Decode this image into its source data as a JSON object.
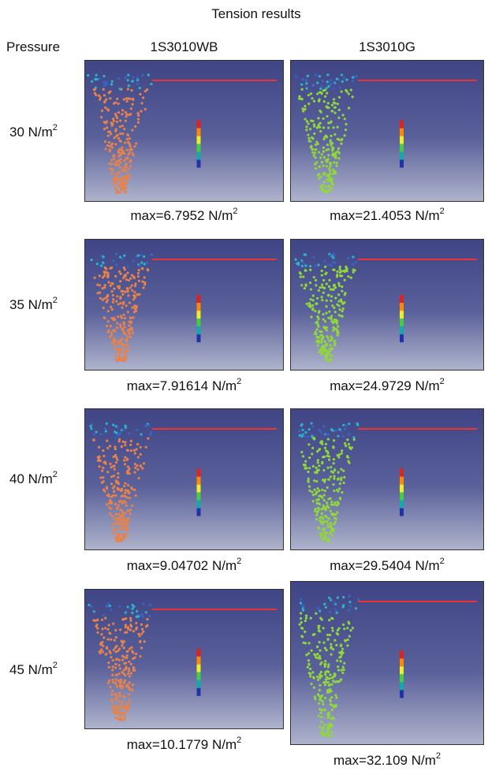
{
  "title": "Tension results",
  "header": {
    "row_label": "Pressure",
    "columns": [
      "1S3010WB",
      "1S3010G"
    ]
  },
  "rows": [
    {
      "pressure": "30 N/m",
      "pressure_sup": "2",
      "cells": [
        {
          "caption": "max=6.7952 N/m",
          "caption_sup": "2"
        },
        {
          "caption": "max=21.4053 N/m",
          "caption_sup": "2"
        }
      ]
    },
    {
      "pressure": "35 N/m",
      "pressure_sup": "2",
      "cells": [
        {
          "caption": "max=7.91614 N/m",
          "caption_sup": "2"
        },
        {
          "caption": "max=24.9729 N/m",
          "caption_sup": "2"
        }
      ]
    },
    {
      "pressure": "40 N/m",
      "pressure_sup": "2",
      "cells": [
        {
          "caption": "max=9.04702 N/m",
          "caption_sup": "2"
        },
        {
          "caption": "max=29.5404 N/m",
          "caption_sup": "2"
        }
      ]
    },
    {
      "pressure": "45 N/m",
      "pressure_sup": "2",
      "cells": [
        {
          "caption": "max=10.1779 N/m",
          "caption_sup": "2"
        },
        {
          "caption": "max=32.109 N/m",
          "caption_sup": "2"
        }
      ]
    }
  ]
}
